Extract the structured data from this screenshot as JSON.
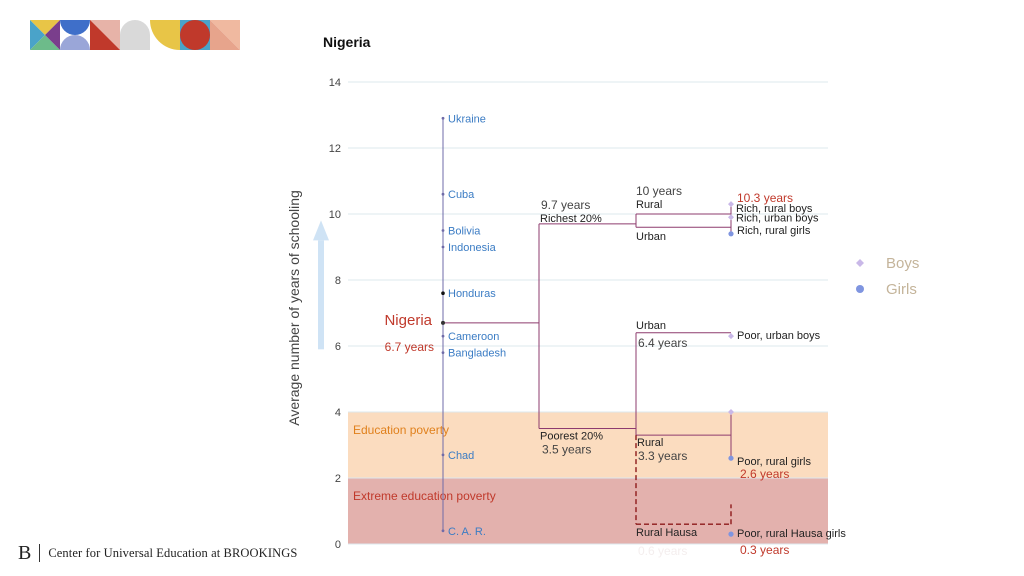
{
  "footer": {
    "mark": "B",
    "org": "Center for Universal Education at BROOKINGS"
  },
  "legend": [
    {
      "label": "Boys",
      "marker": "diamond",
      "color": "#c9b8e8"
    },
    {
      "label": "Girls",
      "marker": "circle",
      "color": "#7f95e0"
    }
  ],
  "chart_data": {
    "type": "line",
    "title": "Nigeria",
    "ylabel": "Average number of years of schooling",
    "ylim": [
      0,
      14
    ],
    "yticks": [
      0,
      2,
      4,
      6,
      8,
      10,
      12,
      14
    ],
    "bands": [
      {
        "label": "Education poverty",
        "from": 2,
        "to": 4,
        "color": "#fbdcbf",
        "text_color": "#e0801c"
      },
      {
        "label": "Extreme education poverty",
        "from": 0,
        "to": 2,
        "color": "#e3b1ad",
        "text_color": "#c0392b"
      }
    ],
    "countries": [
      {
        "name": "Ukraine",
        "value": 12.9
      },
      {
        "name": "Cuba",
        "value": 10.6
      },
      {
        "name": "Bolivia",
        "value": 9.5
      },
      {
        "name": "Indonesia",
        "value": 9.0
      },
      {
        "name": "Honduras",
        "value": 7.6
      },
      {
        "name": "Cameroon",
        "value": 6.3
      },
      {
        "name": "Bangladesh",
        "value": 5.8
      },
      {
        "name": "Chad",
        "value": 2.7
      },
      {
        "name": "C. A. R.",
        "value": 0.4
      }
    ],
    "focus": {
      "name": "Nigeria",
      "value": 6.7,
      "value_label": "6.7 years"
    },
    "wealth": [
      {
        "name": "Richest 20%",
        "value": 9.7,
        "value_label": "9.7 years"
      },
      {
        "name": "Poorest 20%",
        "value": 3.5,
        "value_label": "3.5 years"
      }
    ],
    "location": [
      {
        "name": "Rural",
        "parent": "Richest 20%",
        "value": 10.0,
        "value_label": "10 years"
      },
      {
        "name": "Urban",
        "parent": "Richest 20%",
        "value": 9.6,
        "value_label": ""
      },
      {
        "name": "Urban",
        "parent": "Poorest 20%",
        "value": 6.4,
        "value_label": "6.4 years"
      },
      {
        "name": "Rural",
        "parent": "Poorest 20%",
        "value": 3.3,
        "value_label": "3.3 years"
      },
      {
        "name": "Rural Hausa",
        "parent": "Poorest 20%",
        "value": 0.6,
        "value_label": "0.6 years"
      }
    ],
    "groups": [
      {
        "label": "Rich, rural boys",
        "value": 10.3,
        "value_label": "10.3 years",
        "series": "Boys"
      },
      {
        "label": "Rich, urban boys",
        "value": 9.9,
        "value_label": "",
        "series": "Boys"
      },
      {
        "label": "Rich, rural girls",
        "value": 9.4,
        "value_label": "",
        "series": "Girls"
      },
      {
        "label": "Poor, urban boys",
        "value": 6.3,
        "value_label": "",
        "series": "Boys"
      },
      {
        "label": "",
        "value": 4.0,
        "value_label": "",
        "series": "Boys"
      },
      {
        "label": "Poor, rural girls",
        "value": 2.6,
        "value_label": "2.6 years",
        "series": "Girls"
      },
      {
        "label": "Poor, rural Hausa girls",
        "value": 0.3,
        "value_label": "0.3 years",
        "series": "Girls"
      }
    ]
  }
}
